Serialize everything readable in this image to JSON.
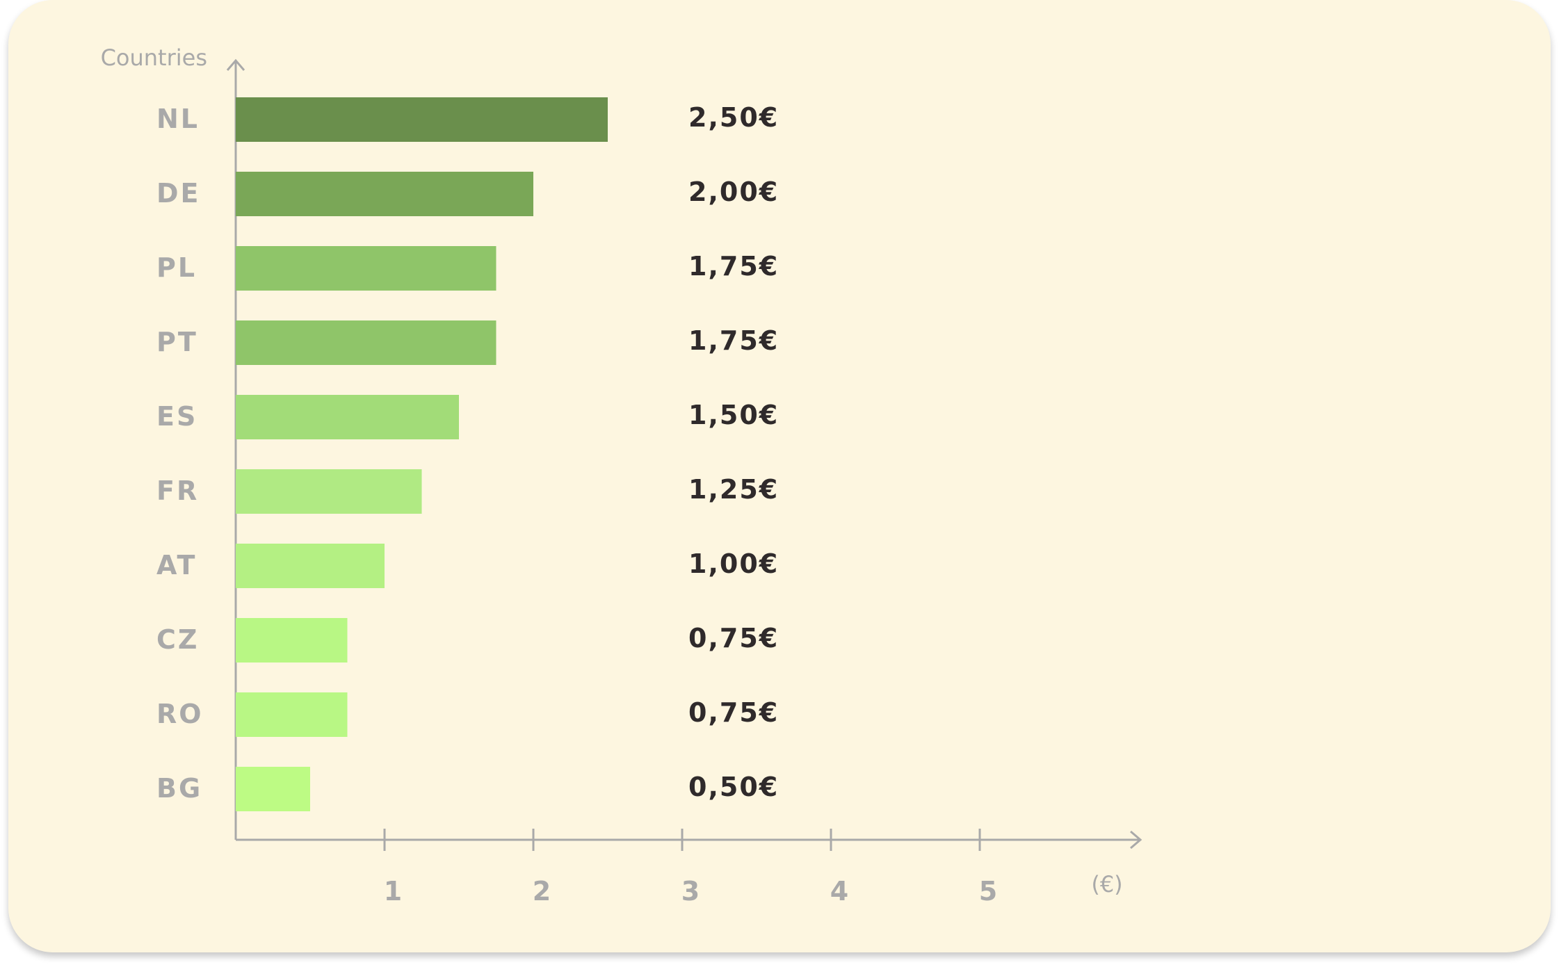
{
  "chart_data": {
    "type": "bar",
    "orientation": "horizontal",
    "ylabel": "Countries",
    "xlabel": "(€)",
    "categories": [
      "NL",
      "DE",
      "PL",
      "PT",
      "ES",
      "FR",
      "AT",
      "CZ",
      "RO",
      "BG"
    ],
    "values": [
      2.5,
      2.0,
      1.75,
      1.75,
      1.5,
      1.25,
      1.0,
      0.75,
      0.75,
      0.5
    ],
    "value_labels": [
      "2,50€",
      "2,00€",
      "1,75€",
      "1,75€",
      "1,50€",
      "1,25€",
      "1,00€",
      "0,75€",
      "0,75€",
      "0,50€"
    ],
    "bar_colors": [
      "#6a8f4c",
      "#7aa757",
      "#8fc569",
      "#8fc569",
      "#a2dc78",
      "#b0ea83",
      "#b4f083",
      "#b8f784",
      "#b8f784",
      "#bdfb84"
    ],
    "xticks": [
      1,
      2,
      3,
      4,
      5
    ],
    "xlim": [
      0,
      6
    ],
    "grid": false,
    "legend": "none"
  }
}
